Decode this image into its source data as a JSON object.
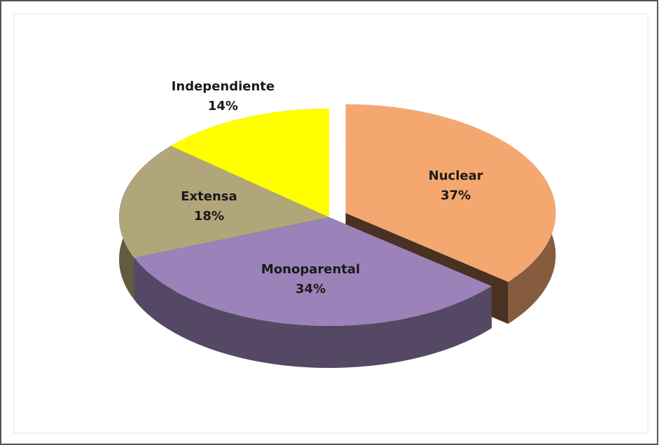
{
  "chart_data": {
    "type": "pie3d",
    "categories": [
      "Nuclear",
      "Monoparental",
      "Extensa",
      "Independiente"
    ],
    "values": [
      37,
      34,
      18,
      14
    ],
    "value_labels": [
      "37%",
      "34%",
      "18%",
      "14%"
    ],
    "colors": [
      "#f4a870",
      "#9b82b8",
      "#b0a67a",
      "#ffff00"
    ],
    "explode": [
      true,
      false,
      false,
      false
    ]
  }
}
